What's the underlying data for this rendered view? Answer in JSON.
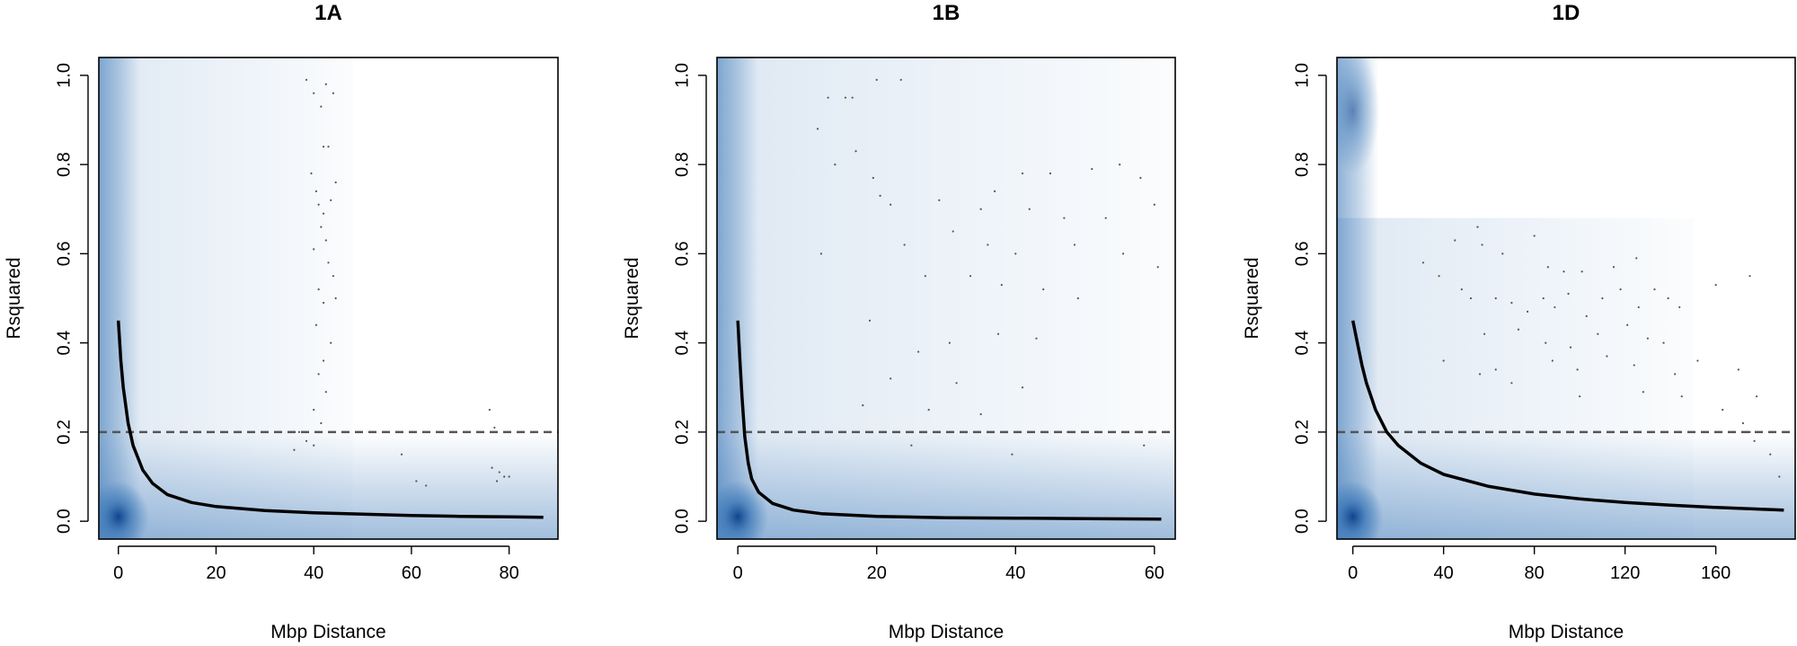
{
  "chart_data": [
    {
      "type": "scatter",
      "title": "1A",
      "xlabel": "Mbp Distance",
      "ylabel": "Rsquared",
      "xlim": [
        -4,
        90
      ],
      "ylim": [
        -0.04,
        1.04
      ],
      "xticks": [
        0,
        20,
        40,
        60,
        80
      ],
      "xtick_labels": [
        "0",
        "20",
        "40",
        "60",
        "80"
      ],
      "yticks": [
        0.0,
        0.2,
        0.4,
        0.6,
        0.8,
        1.0
      ],
      "ytick_labels": [
        "0.0",
        "0.2",
        "0.4",
        "0.6",
        "0.8",
        "1.0"
      ],
      "threshold_line": 0.2,
      "density_color": "#2f6fb3",
      "decay_curve": {
        "x": [
          0,
          0.5,
          1,
          2,
          3,
          5,
          7,
          10,
          15,
          20,
          30,
          40,
          50,
          60,
          70,
          80,
          87
        ],
        "y": [
          0.45,
          0.36,
          0.3,
          0.22,
          0.17,
          0.115,
          0.085,
          0.06,
          0.042,
          0.033,
          0.024,
          0.019,
          0.016,
          0.013,
          0.011,
          0.01,
          0.009
        ]
      },
      "points": [
        [
          38.5,
          0.99
        ],
        [
          40.0,
          0.96
        ],
        [
          42.5,
          0.98
        ],
        [
          44.0,
          0.96
        ],
        [
          41.5,
          0.93
        ],
        [
          42.0,
          0.84
        ],
        [
          43.0,
          0.84
        ],
        [
          39.5,
          0.78
        ],
        [
          40.5,
          0.74
        ],
        [
          41.0,
          0.71
        ],
        [
          42.0,
          0.69
        ],
        [
          43.5,
          0.72
        ],
        [
          44.5,
          0.76
        ],
        [
          41.5,
          0.66
        ],
        [
          42.5,
          0.63
        ],
        [
          40.0,
          0.61
        ],
        [
          43.0,
          0.58
        ],
        [
          44.0,
          0.55
        ],
        [
          41.0,
          0.52
        ],
        [
          42.0,
          0.49
        ],
        [
          44.5,
          0.5
        ],
        [
          40.5,
          0.44
        ],
        [
          43.5,
          0.4
        ],
        [
          42.0,
          0.36
        ],
        [
          41.0,
          0.33
        ],
        [
          42.5,
          0.29
        ],
        [
          40.0,
          0.25
        ],
        [
          41.5,
          0.22
        ],
        [
          37.0,
          0.2
        ],
        [
          38.5,
          0.18
        ],
        [
          40.0,
          0.17
        ],
        [
          36.0,
          0.16
        ],
        [
          58.0,
          0.15
        ],
        [
          61.0,
          0.09
        ],
        [
          63.0,
          0.08
        ],
        [
          76.0,
          0.25
        ],
        [
          77.0,
          0.21
        ],
        [
          76.5,
          0.12
        ],
        [
          78.0,
          0.11
        ],
        [
          79.0,
          0.1
        ],
        [
          80.0,
          0.1
        ],
        [
          77.5,
          0.09
        ]
      ]
    },
    {
      "type": "scatter",
      "title": "1B",
      "xlabel": "Mbp Distance",
      "ylabel": "Rsquared",
      "xlim": [
        -3,
        63
      ],
      "ylim": [
        -0.04,
        1.04
      ],
      "xticks": [
        0,
        20,
        40,
        60
      ],
      "xtick_labels": [
        "0",
        "20",
        "40",
        "60"
      ],
      "yticks": [
        0.0,
        0.2,
        0.4,
        0.6,
        0.8,
        1.0
      ],
      "ytick_labels": [
        "0.0",
        "0.2",
        "0.4",
        "0.6",
        "0.8",
        "1.0"
      ],
      "threshold_line": 0.2,
      "density_color": "#2f6fb3",
      "decay_curve": {
        "x": [
          0,
          0.3,
          0.6,
          1,
          1.5,
          2,
          3,
          5,
          8,
          12,
          20,
          30,
          40,
          50,
          61
        ],
        "y": [
          0.45,
          0.36,
          0.28,
          0.19,
          0.13,
          0.095,
          0.065,
          0.04,
          0.025,
          0.017,
          0.011,
          0.008,
          0.007,
          0.006,
          0.005
        ]
      },
      "points": [
        [
          20.0,
          0.99
        ],
        [
          23.5,
          0.99
        ],
        [
          13.0,
          0.95
        ],
        [
          15.5,
          0.95
        ],
        [
          16.5,
          0.95
        ],
        [
          11.5,
          0.88
        ],
        [
          17.0,
          0.83
        ],
        [
          14.0,
          0.8
        ],
        [
          19.5,
          0.77
        ],
        [
          20.5,
          0.73
        ],
        [
          22.0,
          0.71
        ],
        [
          29.0,
          0.72
        ],
        [
          35.0,
          0.7
        ],
        [
          37.0,
          0.74
        ],
        [
          41.0,
          0.78
        ],
        [
          45.0,
          0.78
        ],
        [
          51.0,
          0.79
        ],
        [
          55.0,
          0.8
        ],
        [
          58.0,
          0.77
        ],
        [
          42.0,
          0.7
        ],
        [
          47.0,
          0.68
        ],
        [
          53.0,
          0.68
        ],
        [
          60.0,
          0.71
        ],
        [
          24.0,
          0.62
        ],
        [
          31.0,
          0.65
        ],
        [
          36.0,
          0.62
        ],
        [
          40.0,
          0.6
        ],
        [
          48.5,
          0.62
        ],
        [
          55.5,
          0.6
        ],
        [
          60.5,
          0.57
        ],
        [
          27.0,
          0.55
        ],
        [
          33.5,
          0.55
        ],
        [
          38.0,
          0.53
        ],
        [
          44.0,
          0.52
        ],
        [
          49.0,
          0.5
        ],
        [
          19.0,
          0.45
        ],
        [
          26.0,
          0.38
        ],
        [
          30.5,
          0.4
        ],
        [
          37.5,
          0.42
        ],
        [
          43.0,
          0.41
        ],
        [
          22.0,
          0.32
        ],
        [
          31.5,
          0.31
        ],
        [
          41.0,
          0.3
        ],
        [
          18.0,
          0.26
        ],
        [
          27.5,
          0.25
        ],
        [
          35.0,
          0.24
        ],
        [
          34.0,
          0.2
        ],
        [
          47.5,
          0.2
        ],
        [
          58.5,
          0.17
        ],
        [
          39.5,
          0.15
        ],
        [
          25.0,
          0.17
        ],
        [
          12.0,
          0.6
        ]
      ]
    },
    {
      "type": "scatter",
      "title": "1D",
      "xlabel": "Mbp Distance",
      "ylabel": "Rsquared",
      "xlim": [
        -7,
        195
      ],
      "ylim": [
        -0.04,
        1.04
      ],
      "xticks": [
        0,
        40,
        80,
        120,
        160
      ],
      "xtick_labels": [
        "0",
        "40",
        "80",
        "120",
        "160"
      ],
      "yticks": [
        0.0,
        0.2,
        0.4,
        0.6,
        0.8,
        1.0
      ],
      "ytick_labels": [
        "0.0",
        "0.2",
        "0.4",
        "0.6",
        "0.8",
        "1.0"
      ],
      "threshold_line": 0.2,
      "density_color": "#2f6fb3",
      "decay_curve": {
        "x": [
          0,
          2,
          4,
          6,
          8,
          10,
          15,
          20,
          30,
          40,
          60,
          80,
          100,
          120,
          140,
          160,
          180,
          190
        ],
        "y": [
          0.45,
          0.4,
          0.35,
          0.31,
          0.28,
          0.25,
          0.2,
          0.17,
          0.13,
          0.105,
          0.078,
          0.061,
          0.05,
          0.042,
          0.036,
          0.031,
          0.027,
          0.025
        ]
      },
      "points": [
        [
          45.0,
          0.63
        ],
        [
          55.0,
          0.66
        ],
        [
          57.0,
          0.62
        ],
        [
          66.0,
          0.6
        ],
        [
          80.0,
          0.64
        ],
        [
          86.0,
          0.57
        ],
        [
          93.0,
          0.56
        ],
        [
          101.0,
          0.56
        ],
        [
          115.0,
          0.57
        ],
        [
          125.0,
          0.59
        ],
        [
          31.0,
          0.58
        ],
        [
          38.0,
          0.55
        ],
        [
          48.0,
          0.52
        ],
        [
          52.0,
          0.5
        ],
        [
          63.0,
          0.5
        ],
        [
          70.0,
          0.49
        ],
        [
          77.0,
          0.47
        ],
        [
          84.0,
          0.5
        ],
        [
          89.0,
          0.48
        ],
        [
          95.0,
          0.51
        ],
        [
          103.0,
          0.46
        ],
        [
          110.0,
          0.5
        ],
        [
          118.0,
          0.52
        ],
        [
          126.0,
          0.48
        ],
        [
          133.0,
          0.52
        ],
        [
          139.0,
          0.5
        ],
        [
          144.0,
          0.48
        ],
        [
          160.0,
          0.53
        ],
        [
          175.0,
          0.55
        ],
        [
          58.0,
          0.42
        ],
        [
          73.0,
          0.43
        ],
        [
          85.0,
          0.4
        ],
        [
          96.0,
          0.39
        ],
        [
          108.0,
          0.42
        ],
        [
          121.0,
          0.44
        ],
        [
          130.0,
          0.41
        ],
        [
          137.0,
          0.4
        ],
        [
          88.0,
          0.36
        ],
        [
          99.0,
          0.34
        ],
        [
          112.0,
          0.37
        ],
        [
          124.0,
          0.35
        ],
        [
          152.0,
          0.36
        ],
        [
          170.0,
          0.34
        ],
        [
          56.0,
          0.33
        ],
        [
          63.0,
          0.34
        ],
        [
          70.0,
          0.31
        ],
        [
          100.0,
          0.28
        ],
        [
          128.0,
          0.29
        ],
        [
          145.0,
          0.28
        ],
        [
          178.0,
          0.28
        ],
        [
          163.0,
          0.25
        ],
        [
          172.0,
          0.22
        ],
        [
          175.0,
          0.2
        ],
        [
          177.0,
          0.18
        ],
        [
          184.0,
          0.15
        ],
        [
          188.0,
          0.1
        ],
        [
          40.0,
          0.36
        ],
        [
          142.0,
          0.33
        ]
      ]
    }
  ]
}
